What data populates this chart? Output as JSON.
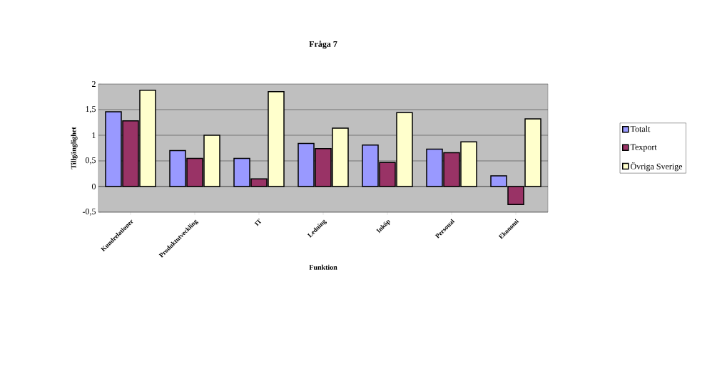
{
  "chart_data": {
    "type": "bar",
    "title": "Fråga 7",
    "xlabel": "Funktion",
    "ylabel": "Tillgänglighet",
    "categories": [
      "Kundrelationer",
      "Produktutveckling",
      "IT",
      "Ledning",
      "Inköp",
      "Personal",
      "Ekonomi"
    ],
    "series": [
      {
        "name": "Totalt",
        "color": "#9999ff",
        "values": [
          1.46,
          0.7,
          0.55,
          0.84,
          0.81,
          0.73,
          0.21
        ]
      },
      {
        "name": "Texport",
        "color": "#993366",
        "values": [
          1.28,
          0.55,
          0.15,
          0.74,
          0.47,
          0.66,
          -0.35
        ]
      },
      {
        "name": "Övriga Sverige",
        "color": "#ffffcc",
        "values": [
          1.88,
          1.0,
          1.85,
          1.14,
          1.44,
          0.87,
          1.32
        ]
      }
    ],
    "ylim": [
      -0.5,
      2
    ],
    "yticks": [
      {
        "value": -0.5,
        "label": "-0,5"
      },
      0,
      {
        "value": 0.5,
        "label": "0,5"
      },
      1,
      {
        "value": 1.5,
        "label": "1,5"
      },
      2
    ],
    "grid": "y",
    "legend": "right"
  }
}
